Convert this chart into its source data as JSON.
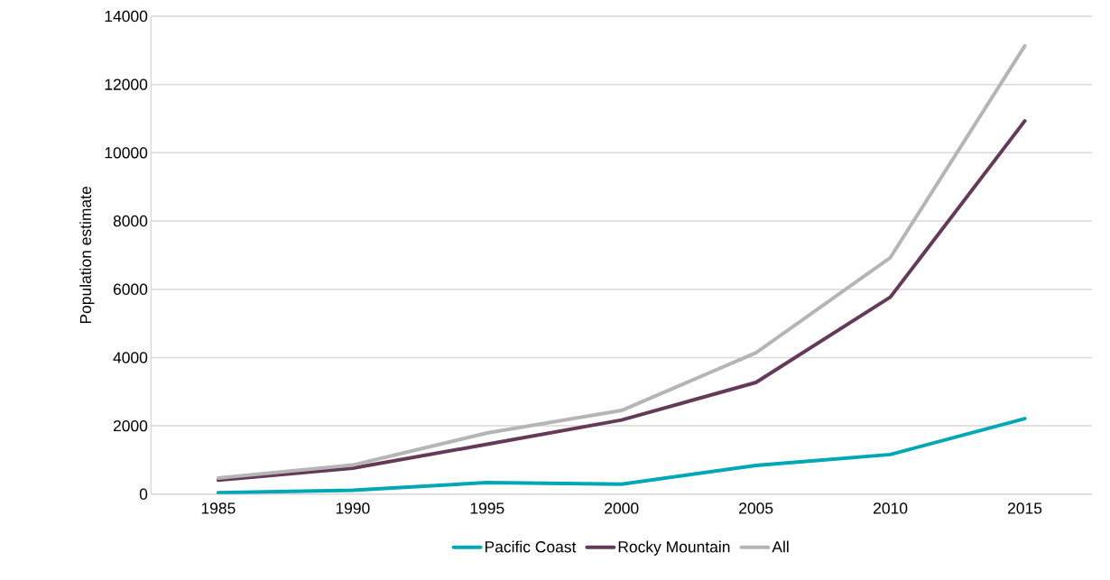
{
  "chart_data": {
    "type": "line",
    "ylabel": "Population estimate",
    "categories": [
      "1985",
      "1990",
      "1995",
      "2000",
      "2005",
      "2010",
      "2015"
    ],
    "series": [
      {
        "name": "Pacific Coast",
        "color": "#00a7b5",
        "values": [
          40,
          110,
          340,
          290,
          840,
          1160,
          2210
        ]
      },
      {
        "name": "Rocky Mountain",
        "color": "#643a58",
        "values": [
          410,
          760,
          1460,
          2170,
          3270,
          5770,
          10930
        ]
      },
      {
        "name": "All",
        "color": "#b5b5b5",
        "values": [
          470,
          850,
          1790,
          2450,
          4140,
          6930,
          13130
        ]
      }
    ],
    "ylim": [
      0,
      14000
    ],
    "yticks": [
      0,
      2000,
      4000,
      6000,
      8000,
      10000,
      12000,
      14000
    ],
    "grid": "y",
    "legend": "bottom",
    "marker": "none",
    "line_style": "solid"
  }
}
